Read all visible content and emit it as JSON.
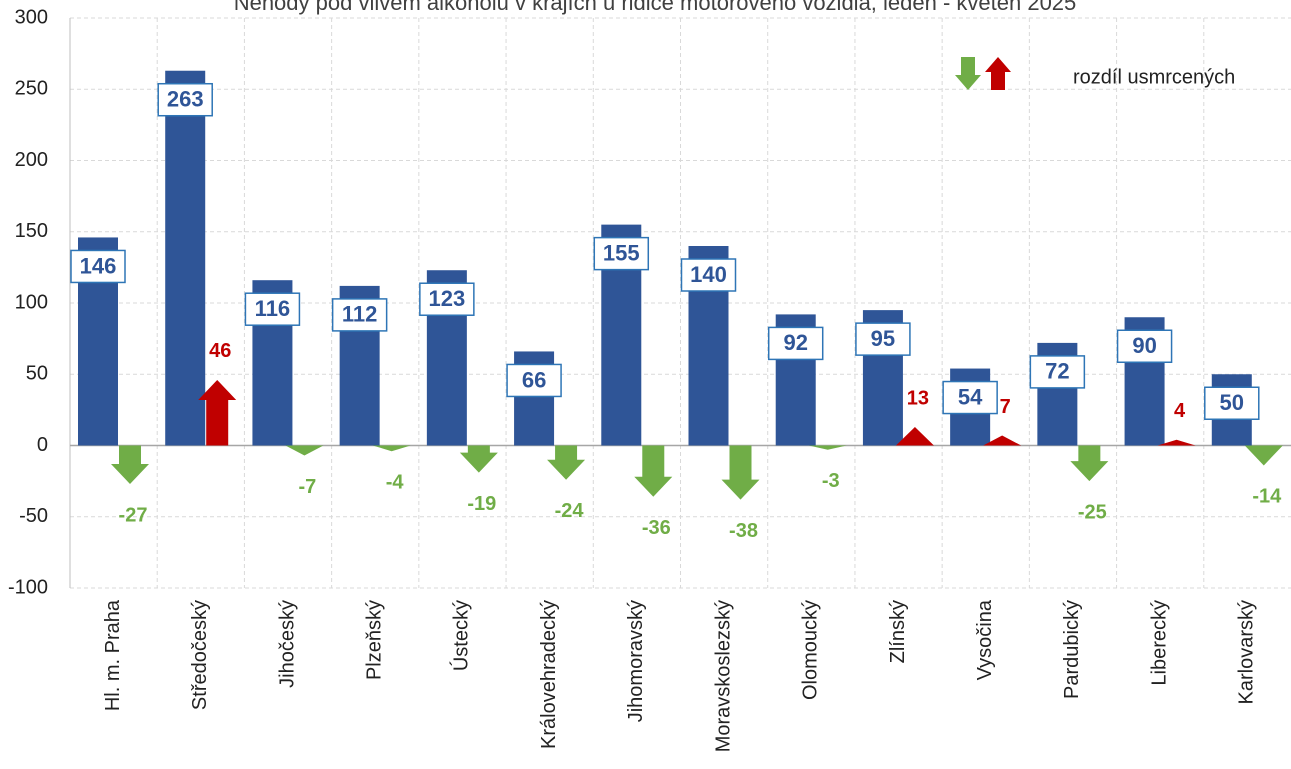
{
  "chart_data": {
    "type": "bar",
    "title": "Nehody pod vlivem alkoholu v krajích u řidiče motorového vozidla,  leden - květen 2025",
    "categories": [
      "Hl. m. Praha",
      "Středočeský",
      "Jihočeský",
      "Plzeňský",
      "Ústecký",
      "Královehradecký",
      "Jihomoravský",
      "Moravskoslezský",
      "Olomoucký",
      "Zlínský",
      "Vysočina",
      "Pardubický",
      "Liberecký",
      "Karlovarský"
    ],
    "series": [
      {
        "color": "#2f5597",
        "values": [
          146,
          263,
          116,
          112,
          123,
          66,
          155,
          140,
          92,
          95,
          54,
          72,
          90,
          50
        ]
      },
      {
        "name": "rozdíl usmrcených",
        "colors": {
          "down": "#70ad47",
          "up": "#c00000"
        },
        "values": [
          -27,
          46,
          -7,
          -4,
          -19,
          -24,
          -36,
          -38,
          -3,
          13,
          7,
          -25,
          4,
          -14
        ]
      }
    ],
    "ylim": [
      -100,
      300
    ],
    "yticks": [
      -100,
      -50,
      0,
      50,
      100,
      150,
      200,
      250,
      300
    ],
    "grid": true
  }
}
